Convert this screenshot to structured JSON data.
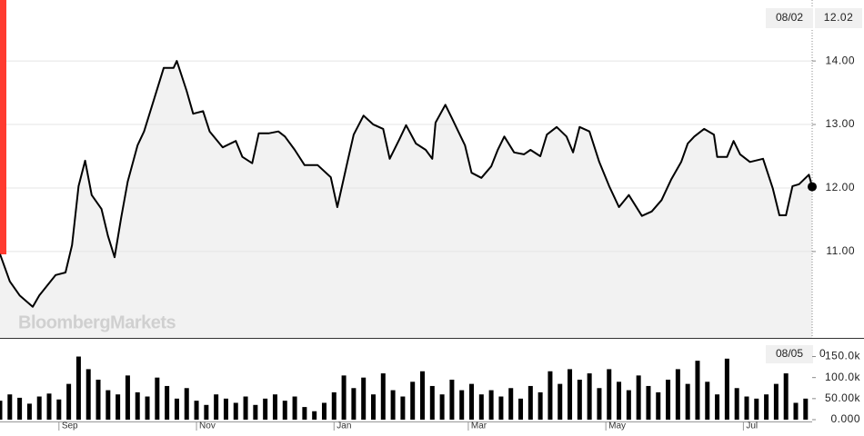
{
  "chart_data": [
    {
      "type": "line",
      "watermark": "BloombergMarkets",
      "last_date": "08/02",
      "last_price": 12.02,
      "color": "#000000",
      "fill": "#f2f2f2",
      "x": [
        0,
        3,
        6,
        10,
        12,
        17,
        20,
        22,
        24,
        26,
        28,
        31,
        33,
        35,
        37,
        39,
        42,
        44,
        47,
        50,
        53,
        54,
        57,
        59,
        62,
        64,
        68,
        72,
        74,
        77,
        79,
        82,
        85,
        87,
        90,
        93,
        97,
        101,
        103,
        106,
        108,
        111,
        114,
        117,
        119,
        122,
        124,
        127,
        130,
        132,
        133,
        136,
        138,
        142,
        144,
        147,
        150,
        152,
        154,
        157,
        160,
        162,
        165,
        167,
        170,
        173,
        175,
        177,
        180,
        183,
        186,
        189,
        192,
        196,
        199,
        202,
        205,
        208,
        210,
        212,
        215,
        218,
        219,
        222,
        224,
        226,
        229,
        233,
        236,
        238,
        240,
        242,
        244,
        247,
        248
      ],
      "values": [
        10.96,
        10.53,
        10.31,
        10.13,
        10.31,
        10.63,
        10.67,
        11.1,
        12.03,
        12.43,
        11.89,
        11.67,
        11.24,
        10.91,
        11.53,
        12.1,
        12.67,
        12.89,
        13.39,
        13.89,
        13.89,
        14.0,
        13.53,
        13.17,
        13.21,
        12.89,
        12.64,
        12.74,
        12.49,
        12.39,
        12.86,
        12.86,
        12.89,
        12.81,
        12.6,
        12.36,
        12.36,
        12.17,
        11.7,
        12.39,
        12.84,
        13.14,
        13.0,
        12.93,
        12.46,
        12.77,
        12.99,
        12.7,
        12.6,
        12.46,
        13.03,
        13.31,
        13.1,
        12.67,
        12.24,
        12.16,
        12.34,
        12.6,
        12.81,
        12.56,
        12.53,
        12.6,
        12.5,
        12.84,
        12.96,
        12.81,
        12.56,
        12.96,
        12.89,
        12.41,
        12.03,
        11.7,
        11.89,
        11.56,
        11.63,
        11.81,
        12.14,
        12.41,
        12.7,
        12.81,
        12.93,
        12.84,
        12.49,
        12.49,
        12.74,
        12.53,
        12.41,
        12.46,
        11.99,
        11.57,
        11.57,
        12.03,
        12.06,
        12.21,
        12.02
      ],
      "xlim": [
        0,
        248
      ],
      "ylim": [
        9.64,
        14.96
      ],
      "yticks": [
        {
          "value": 11,
          "label": "11.00"
        },
        {
          "value": 12,
          "label": "12.00"
        },
        {
          "value": 13,
          "label": "13.00"
        },
        {
          "value": 14,
          "label": "14.00"
        }
      ],
      "grid": true
    },
    {
      "type": "bar",
      "last_date": "08/05",
      "last_volume": 0,
      "color": "#000000",
      "x": [
        0,
        3,
        6,
        9,
        12,
        15,
        18,
        21,
        24,
        27,
        30,
        33,
        36,
        39,
        42,
        45,
        48,
        51,
        54,
        57,
        60,
        63,
        66,
        69,
        72,
        75,
        78,
        81,
        84,
        87,
        90,
        93,
        96,
        99,
        102,
        105,
        108,
        111,
        114,
        117,
        120,
        123,
        126,
        129,
        132,
        135,
        138,
        141,
        144,
        147,
        150,
        153,
        156,
        159,
        162,
        165,
        168,
        171,
        174,
        177,
        180,
        183,
        186,
        189,
        192,
        195,
        198,
        201,
        204,
        207,
        210,
        213,
        216,
        219,
        222,
        225,
        228,
        231,
        234,
        237,
        240,
        243,
        246
      ],
      "values": [
        45000,
        60000,
        52000,
        38000,
        55000,
        62000,
        48000,
        85000,
        150000,
        120000,
        95000,
        70000,
        60000,
        105000,
        65000,
        55000,
        100000,
        80000,
        50000,
        75000,
        45000,
        35000,
        60000,
        50000,
        40000,
        55000,
        35000,
        50000,
        60000,
        45000,
        55000,
        30000,
        20000,
        40000,
        65000,
        105000,
        75000,
        100000,
        60000,
        110000,
        70000,
        55000,
        90000,
        115000,
        80000,
        60000,
        95000,
        70000,
        85000,
        60000,
        70000,
        55000,
        75000,
        50000,
        80000,
        65000,
        115000,
        85000,
        120000,
        95000,
        110000,
        75000,
        120000,
        90000,
        70000,
        105000,
        80000,
        65000,
        95000,
        120000,
        85000,
        140000,
        90000,
        60000,
        145000,
        75000,
        55000,
        50000,
        60000,
        85000,
        110000,
        40000,
        50000
      ],
      "xlim": [
        0,
        248
      ],
      "ylim": [
        0,
        190000
      ],
      "yticks": [
        {
          "value": 0,
          "label": "0.000"
        },
        {
          "value": 50000,
          "label": "50.00k"
        },
        {
          "value": 100000,
          "label": "100.0k"
        },
        {
          "value": 150000,
          "label": "150.0k"
        }
      ],
      "xticks": [
        {
          "value": 18,
          "label": "Sep"
        },
        {
          "value": 60,
          "label": "Nov"
        },
        {
          "value": 102,
          "label": "Jan"
        },
        {
          "value": 143,
          "label": "Mar"
        },
        {
          "value": 185,
          "label": "May"
        },
        {
          "value": 227,
          "label": "Jul"
        }
      ]
    }
  ]
}
